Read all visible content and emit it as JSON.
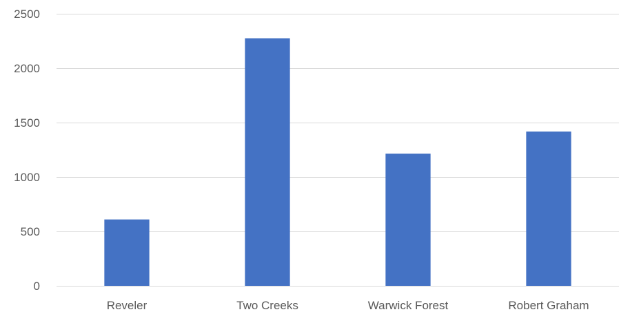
{
  "chart_data": {
    "type": "bar",
    "title": "",
    "xlabel": "",
    "ylabel": "",
    "categories": [
      "Reveler",
      "Two Creeks",
      "Warwick Forest",
      "Robert Graham"
    ],
    "values": [
      610,
      2275,
      1215,
      1418
    ],
    "ylim": [
      0,
      2500
    ],
    "yticks": [
      0,
      500,
      1000,
      1500,
      2000,
      2500
    ],
    "grid": true,
    "legend": "none",
    "bar_color": "#4472c4",
    "grid_color": "#d9d9d9",
    "label_color": "#595959"
  }
}
